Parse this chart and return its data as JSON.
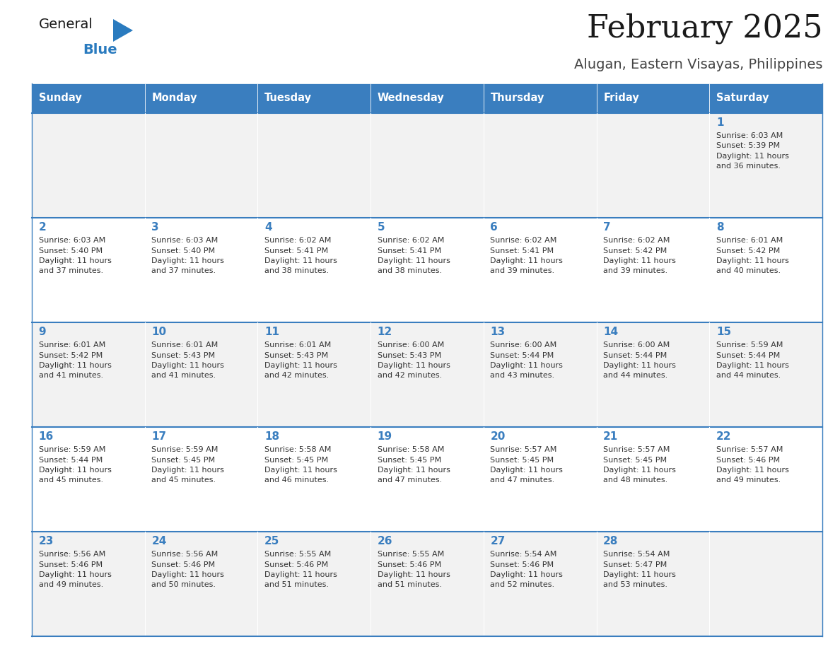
{
  "title": "February 2025",
  "subtitle": "Alugan, Eastern Visayas, Philippines",
  "header_bg": "#3a7ebf",
  "header_text_color": "#ffffff",
  "cell_bg_odd": "#f2f2f2",
  "cell_bg_even": "#ffffff",
  "day_number_color": "#3a7ebf",
  "info_text_color": "#333333",
  "separator_color": "#3a7ebf",
  "days_of_week": [
    "Sunday",
    "Monday",
    "Tuesday",
    "Wednesday",
    "Thursday",
    "Friday",
    "Saturday"
  ],
  "weeks": [
    [
      {
        "day": null,
        "sunrise": null,
        "sunset": null,
        "daylight": null
      },
      {
        "day": null,
        "sunrise": null,
        "sunset": null,
        "daylight": null
      },
      {
        "day": null,
        "sunrise": null,
        "sunset": null,
        "daylight": null
      },
      {
        "day": null,
        "sunrise": null,
        "sunset": null,
        "daylight": null
      },
      {
        "day": null,
        "sunrise": null,
        "sunset": null,
        "daylight": null
      },
      {
        "day": null,
        "sunrise": null,
        "sunset": null,
        "daylight": null
      },
      {
        "day": 1,
        "sunrise": "6:03 AM",
        "sunset": "5:39 PM",
        "daylight": "11 hours and 36 minutes."
      }
    ],
    [
      {
        "day": 2,
        "sunrise": "6:03 AM",
        "sunset": "5:40 PM",
        "daylight": "11 hours and 37 minutes."
      },
      {
        "day": 3,
        "sunrise": "6:03 AM",
        "sunset": "5:40 PM",
        "daylight": "11 hours and 37 minutes."
      },
      {
        "day": 4,
        "sunrise": "6:02 AM",
        "sunset": "5:41 PM",
        "daylight": "11 hours and 38 minutes."
      },
      {
        "day": 5,
        "sunrise": "6:02 AM",
        "sunset": "5:41 PM",
        "daylight": "11 hours and 38 minutes."
      },
      {
        "day": 6,
        "sunrise": "6:02 AM",
        "sunset": "5:41 PM",
        "daylight": "11 hours and 39 minutes."
      },
      {
        "day": 7,
        "sunrise": "6:02 AM",
        "sunset": "5:42 PM",
        "daylight": "11 hours and 39 minutes."
      },
      {
        "day": 8,
        "sunrise": "6:01 AM",
        "sunset": "5:42 PM",
        "daylight": "11 hours and 40 minutes."
      }
    ],
    [
      {
        "day": 9,
        "sunrise": "6:01 AM",
        "sunset": "5:42 PM",
        "daylight": "11 hours and 41 minutes."
      },
      {
        "day": 10,
        "sunrise": "6:01 AM",
        "sunset": "5:43 PM",
        "daylight": "11 hours and 41 minutes."
      },
      {
        "day": 11,
        "sunrise": "6:01 AM",
        "sunset": "5:43 PM",
        "daylight": "11 hours and 42 minutes."
      },
      {
        "day": 12,
        "sunrise": "6:00 AM",
        "sunset": "5:43 PM",
        "daylight": "11 hours and 42 minutes."
      },
      {
        "day": 13,
        "sunrise": "6:00 AM",
        "sunset": "5:44 PM",
        "daylight": "11 hours and 43 minutes."
      },
      {
        "day": 14,
        "sunrise": "6:00 AM",
        "sunset": "5:44 PM",
        "daylight": "11 hours and 44 minutes."
      },
      {
        "day": 15,
        "sunrise": "5:59 AM",
        "sunset": "5:44 PM",
        "daylight": "11 hours and 44 minutes."
      }
    ],
    [
      {
        "day": 16,
        "sunrise": "5:59 AM",
        "sunset": "5:44 PM",
        "daylight": "11 hours and 45 minutes."
      },
      {
        "day": 17,
        "sunrise": "5:59 AM",
        "sunset": "5:45 PM",
        "daylight": "11 hours and 45 minutes."
      },
      {
        "day": 18,
        "sunrise": "5:58 AM",
        "sunset": "5:45 PM",
        "daylight": "11 hours and 46 minutes."
      },
      {
        "day": 19,
        "sunrise": "5:58 AM",
        "sunset": "5:45 PM",
        "daylight": "11 hours and 47 minutes."
      },
      {
        "day": 20,
        "sunrise": "5:57 AM",
        "sunset": "5:45 PM",
        "daylight": "11 hours and 47 minutes."
      },
      {
        "day": 21,
        "sunrise": "5:57 AM",
        "sunset": "5:45 PM",
        "daylight": "11 hours and 48 minutes."
      },
      {
        "day": 22,
        "sunrise": "5:57 AM",
        "sunset": "5:46 PM",
        "daylight": "11 hours and 49 minutes."
      }
    ],
    [
      {
        "day": 23,
        "sunrise": "5:56 AM",
        "sunset": "5:46 PM",
        "daylight": "11 hours and 49 minutes."
      },
      {
        "day": 24,
        "sunrise": "5:56 AM",
        "sunset": "5:46 PM",
        "daylight": "11 hours and 50 minutes."
      },
      {
        "day": 25,
        "sunrise": "5:55 AM",
        "sunset": "5:46 PM",
        "daylight": "11 hours and 51 minutes."
      },
      {
        "day": 26,
        "sunrise": "5:55 AM",
        "sunset": "5:46 PM",
        "daylight": "11 hours and 51 minutes."
      },
      {
        "day": 27,
        "sunrise": "5:54 AM",
        "sunset": "5:46 PM",
        "daylight": "11 hours and 52 minutes."
      },
      {
        "day": 28,
        "sunrise": "5:54 AM",
        "sunset": "5:47 PM",
        "daylight": "11 hours and 53 minutes."
      },
      {
        "day": null,
        "sunrise": null,
        "sunset": null,
        "daylight": null
      }
    ]
  ],
  "logo_text_general": "General",
  "logo_text_blue": "Blue",
  "logo_color_general": "#1a1a1a",
  "logo_color_blue": "#2a7bbf",
  "logo_triangle_color": "#2a7bbf"
}
